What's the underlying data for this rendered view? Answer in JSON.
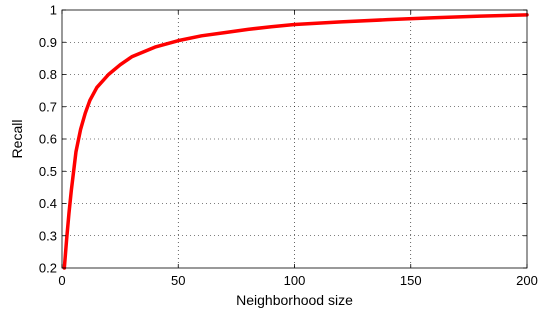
{
  "chart_data": {
    "type": "line",
    "title": "",
    "xlabel": "Neighborhood size",
    "ylabel": "Recall",
    "xlim": [
      0,
      200
    ],
    "ylim": [
      0.2,
      1.0
    ],
    "x_ticks": [
      0,
      50,
      100,
      150,
      200
    ],
    "x_tick_labels": [
      "0",
      "50",
      "100",
      "150",
      "200"
    ],
    "y_ticks": [
      0.2,
      0.3,
      0.4,
      0.5,
      0.6,
      0.7,
      0.8,
      0.9,
      1.0
    ],
    "y_tick_labels": [
      "0.2",
      "0.3",
      "0.4",
      "0.5",
      "0.6",
      "0.7",
      "0.8",
      "0.9",
      "1"
    ],
    "grid": true,
    "legend": "none",
    "series": [
      {
        "color": "#ff0000",
        "x": [
          1,
          2,
          3,
          4,
          5,
          6,
          8,
          10,
          12,
          15,
          20,
          25,
          30,
          40,
          50,
          60,
          70,
          80,
          90,
          100,
          120,
          140,
          160,
          180,
          200
        ],
        "y": [
          0.2,
          0.29,
          0.37,
          0.44,
          0.5,
          0.56,
          0.63,
          0.68,
          0.72,
          0.76,
          0.8,
          0.83,
          0.855,
          0.885,
          0.905,
          0.92,
          0.93,
          0.94,
          0.948,
          0.955,
          0.963,
          0.97,
          0.976,
          0.981,
          0.985
        ]
      }
    ]
  }
}
